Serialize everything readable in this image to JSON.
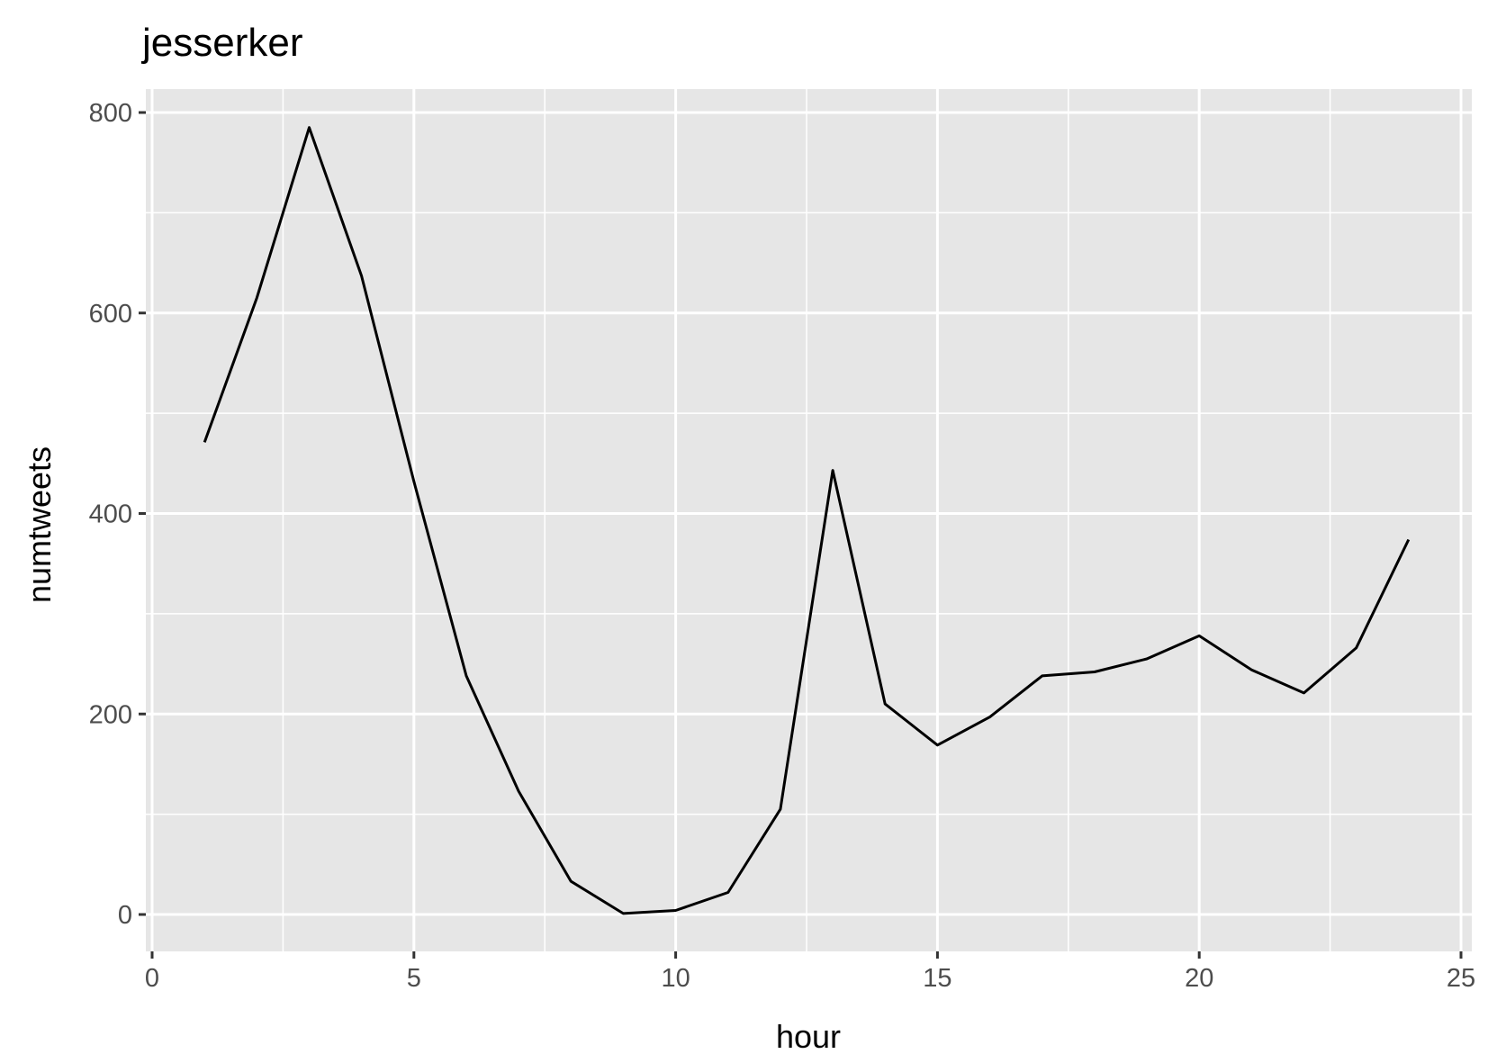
{
  "chart_data": {
    "type": "line",
    "title": "jesserker",
    "xlabel": "hour",
    "ylabel": "numtweets",
    "xlim": [
      0,
      25
    ],
    "ylim": [
      0,
      800
    ],
    "x_ticks": [
      0,
      5,
      10,
      15,
      20,
      25
    ],
    "y_ticks": [
      0,
      200,
      400,
      600,
      800
    ],
    "grid": true,
    "background": "#e6e6e6",
    "line_color": "#000000",
    "x": [
      1,
      2,
      3,
      4,
      5,
      6,
      7,
      8,
      9,
      10,
      11,
      12,
      13,
      14,
      15,
      16,
      17,
      18,
      19,
      20,
      21,
      22,
      23,
      24
    ],
    "y": [
      471,
      615,
      785,
      637,
      432,
      238,
      123,
      33,
      1,
      4,
      22,
      105,
      443,
      210,
      169,
      197,
      238,
      242,
      255,
      278,
      244,
      221,
      266,
      374
    ]
  }
}
